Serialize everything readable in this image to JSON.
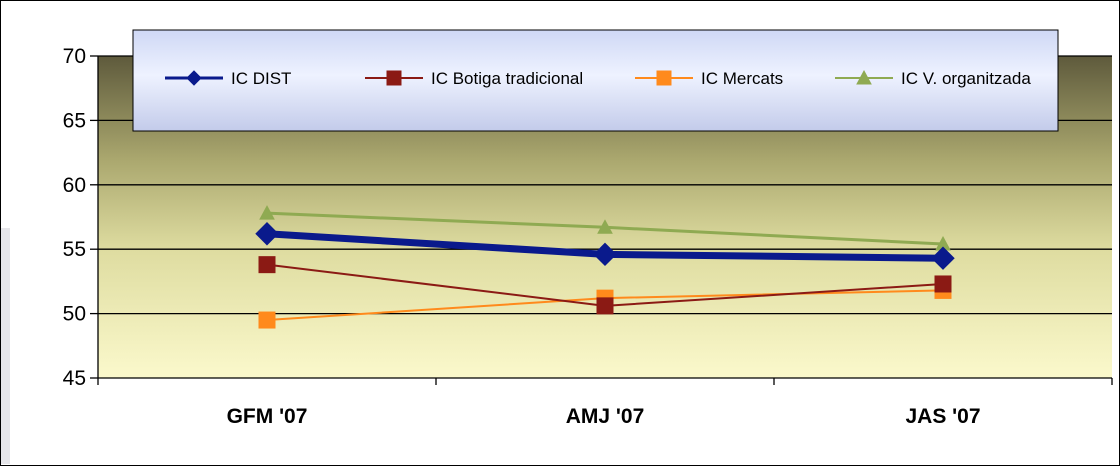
{
  "chart_data": {
    "type": "line",
    "title": "",
    "xlabel": "",
    "ylabel": "",
    "categories": [
      "GFM '07",
      "AMJ '07",
      "JAS '07"
    ],
    "ylim": [
      45,
      70
    ],
    "yticks": [
      45,
      50,
      55,
      60,
      65,
      70
    ],
    "grid": true,
    "legend_position": "top",
    "series": [
      {
        "name": "IC DIST",
        "values": [
          56.2,
          54.6,
          54.3
        ],
        "color": "#0a1a8c",
        "marker": "diamond"
      },
      {
        "name": "IC Botiga tradicional",
        "values": [
          53.8,
          50.6,
          52.3
        ],
        "color": "#8b1a14",
        "marker": "square"
      },
      {
        "name": "IC Mercats",
        "values": [
          49.5,
          51.2,
          51.8
        ],
        "color": "#ff8a1c",
        "marker": "square"
      },
      {
        "name": "IC V. organitzada",
        "values": [
          57.8,
          56.7,
          55.4
        ],
        "color": "#8faa52",
        "marker": "triangle"
      }
    ]
  }
}
